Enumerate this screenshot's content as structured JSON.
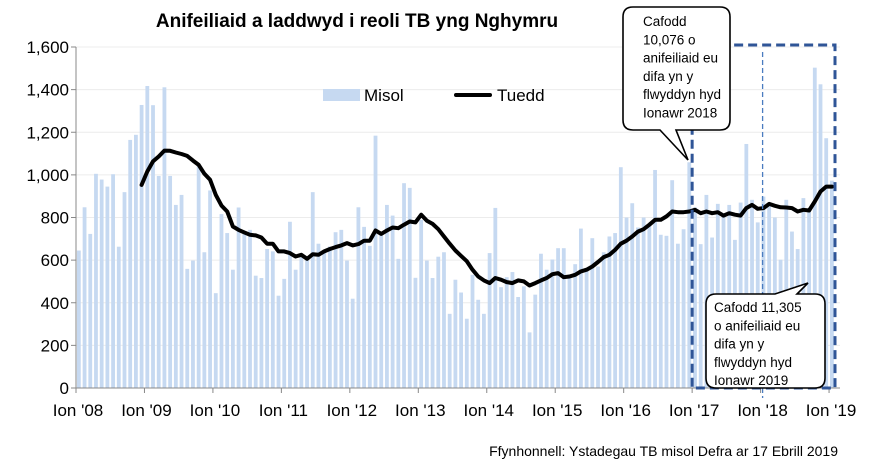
{
  "chart_data": {
    "type": "bar",
    "title": "Anifeiliaid a laddwyd i reoli TB yng Nghymru",
    "xlabel": "",
    "ylabel": "",
    "ylim": [
      0,
      1600
    ],
    "yticks": [
      "0",
      "200",
      "400",
      "600",
      "800",
      "1,000",
      "1,200",
      "1,400",
      "1,600"
    ],
    "ytick_values": [
      0,
      200,
      400,
      600,
      800,
      1000,
      1200,
      1400,
      1600
    ],
    "xticks": [
      "Ion '08",
      "Ion '09",
      "Ion '10",
      "Ion '11",
      "Ion '12",
      "Ion '13",
      "Ion '14",
      "Ion '15",
      "Ion '16",
      "Ion '17",
      "Ion '18",
      "Ion '19"
    ],
    "x_range": [
      "2008-01",
      "2019-01"
    ],
    "grid": true,
    "legend_position": "top-center",
    "series": [
      {
        "name": "Misol",
        "type": "bar",
        "color": "#c6d9f1",
        "values": [
          645,
          848,
          723,
          1005,
          978,
          945,
          1003,
          663,
          919,
          1164,
          1188,
          1328,
          1417,
          1327,
          995,
          1411,
          995,
          859,
          906,
          559,
          598,
          1045,
          637,
          927,
          445,
          816,
          727,
          555,
          847,
          728,
          742,
          527,
          516,
          652,
          641,
          433,
          512,
          780,
          555,
          614,
          617,
          919,
          677,
          645,
          664,
          731,
          742,
          598,
          419,
          848,
          756,
          667,
          1184,
          727,
          859,
          809,
          606,
          961,
          939,
          517,
          789,
          598,
          516,
          616,
          637,
          348,
          508,
          448,
          325,
          531,
          414,
          348,
          633,
          845,
          473,
          520,
          544,
          427,
          477,
          261,
          438,
          630,
          555,
          603,
          656,
          656,
          523,
          581,
          748,
          555,
          703,
          570,
          637,
          711,
          727,
          1036,
          800,
          867,
          753,
          800,
          760,
          1023,
          719,
          714,
          975,
          677,
          745,
          1059,
          847,
          675,
          906,
          706,
          864,
          812,
          859,
          695,
          870,
          1145,
          883,
          777,
          898,
          852,
          800,
          602,
          883,
          734,
          652,
          891,
          828,
          1503,
          1425,
          1172,
          973
        ]
      },
      {
        "name": "Tuedd",
        "type": "line",
        "color": "#000000",
        "values": [
          null,
          null,
          null,
          null,
          null,
          null,
          null,
          null,
          null,
          null,
          null,
          953,
          1016,
          1063,
          1086,
          1114,
          1113,
          1105,
          1098,
          1089,
          1067,
          1047,
          1005,
          977,
          906,
          856,
          828,
          758,
          742,
          730,
          719,
          716,
          706,
          677,
          677,
          641,
          641,
          633,
          617,
          625,
          606,
          628,
          625,
          641,
          652,
          661,
          669,
          680,
          669,
          675,
          691,
          691,
          739,
          723,
          739,
          753,
          750,
          766,
          781,
          777,
          813,
          785,
          770,
          745,
          711,
          677,
          645,
          620,
          595,
          555,
          523,
          505,
          492,
          516,
          508,
          497,
          492,
          505,
          500,
          481,
          492,
          505,
          516,
          534,
          539,
          520,
          523,
          531,
          547,
          555,
          570,
          591,
          614,
          625,
          648,
          677,
          691,
          711,
          734,
          745,
          766,
          789,
          789,
          805,
          828,
          825,
          825,
          828,
          836,
          820,
          828,
          820,
          825,
          809,
          820,
          813,
          809,
          844,
          859,
          841,
          844,
          864,
          855,
          848,
          847,
          844,
          828,
          836,
          833,
          875,
          922,
          945,
          945
        ]
      }
    ],
    "annotations": [
      {
        "lines": [
          "Cafodd",
          "10,076 o",
          "anifeiliaid eu",
          "difa yn y",
          "flwyddyn hyd",
          "Ionawr 2018"
        ]
      },
      {
        "lines": [
          "Cafodd 11,305",
          "o anifeiliaid eu",
          "difa yn y",
          "flwyddyn hyd",
          "Ionawr 2019"
        ]
      }
    ],
    "highlight_color": "#2f5597",
    "source": "Ffynhonnell: Ystadegau TB misol Defra ar 17 Ebrill 2019"
  }
}
